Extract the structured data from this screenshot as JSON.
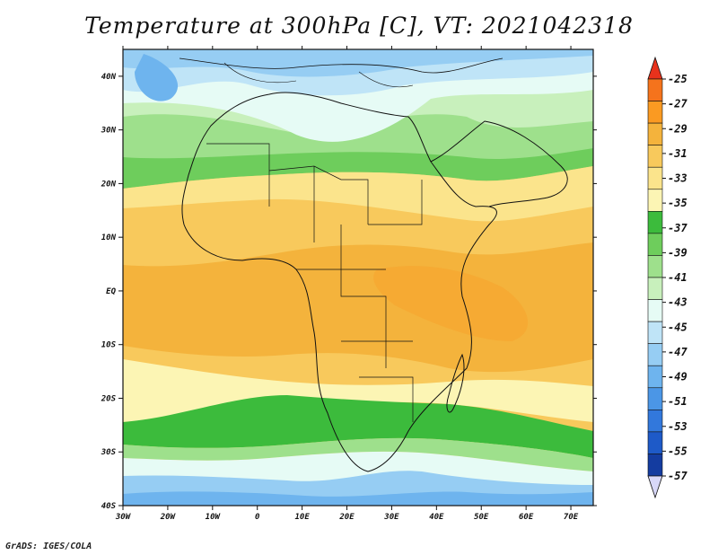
{
  "title": "Temperature at 300hPa [C], VT: 2021042318",
  "credit": "GrADS: IGES/COLA",
  "map": {
    "lon_range": [
      -30,
      75
    ],
    "lat_range": [
      -40,
      45
    ],
    "lon_ticks": [
      "30W",
      "20W",
      "10W",
      "0",
      "10E",
      "20E",
      "30E",
      "40E",
      "50E",
      "60E",
      "70E"
    ],
    "lon_values": [
      -30,
      -20,
      -10,
      0,
      10,
      20,
      30,
      40,
      50,
      60,
      70
    ],
    "lat_ticks": [
      "40N",
      "30N",
      "20N",
      "10N",
      "EQ",
      "10S",
      "20S",
      "30S",
      "40S"
    ],
    "lat_values": [
      40,
      30,
      20,
      10,
      0,
      -10,
      -20,
      -30,
      -40
    ]
  },
  "colorbar": {
    "labels": [
      "-25",
      "-27",
      "-29",
      "-31",
      "-33",
      "-35",
      "-37",
      "-39",
      "-41",
      "-43",
      "-45",
      "-47",
      "-49",
      "-51",
      "-53",
      "-55",
      "-57"
    ],
    "colors": [
      "#e8321c",
      "#f5731c",
      "#fa9a22",
      "#f4b33c",
      "#f8c95c",
      "#fbe48c",
      "#fcf5b4",
      "#3cbb3c",
      "#6ecd5c",
      "#9ee08c",
      "#c8f0bc",
      "#e6fbf5",
      "#bfe4f7",
      "#96cdf3",
      "#6eb4ee",
      "#4b96e6",
      "#3278dc",
      "#1e5ac8",
      "#143ca0",
      "#0a1e78"
    ]
  },
  "legend_colors": {
    "top_arrow": "#e8321c",
    "bottom_arrow": "#d8d8f8"
  }
}
